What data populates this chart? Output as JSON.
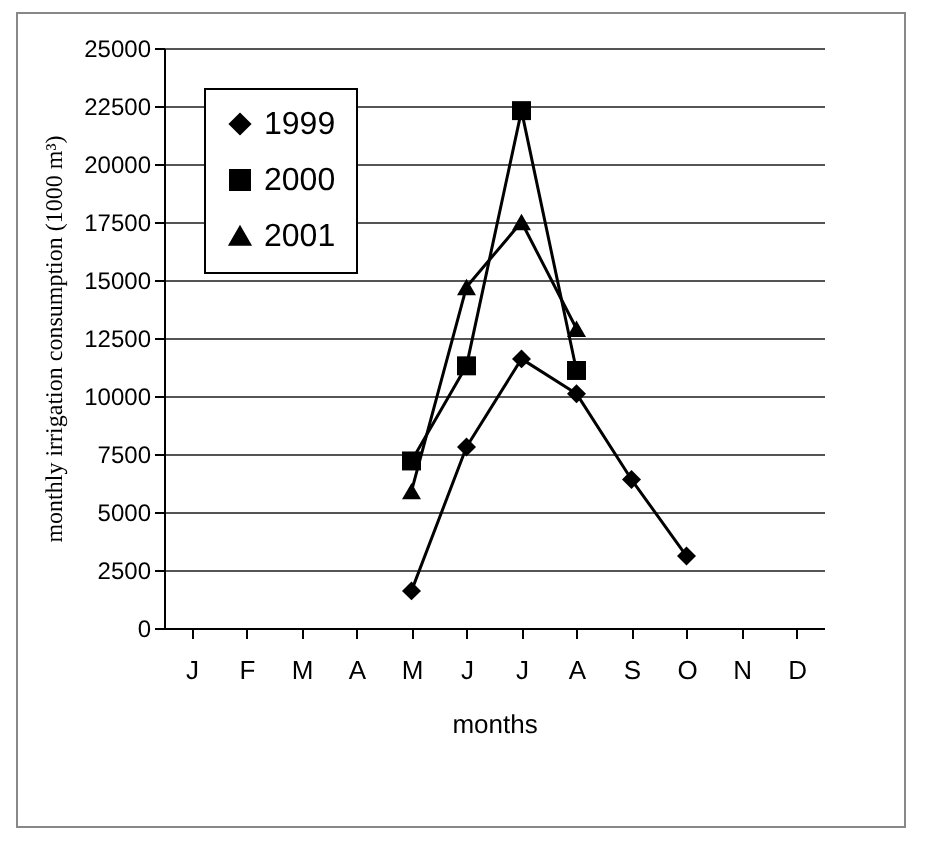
{
  "chart_data": {
    "type": "line",
    "xlabel": "months",
    "ylabel": "monthly irrigation consumption (1000 m³)",
    "categories": [
      "J",
      "F",
      "M",
      "A",
      "M",
      "J",
      "J",
      "A",
      "S",
      "O",
      "N",
      "D"
    ],
    "series": [
      {
        "name": "1999",
        "color": "#000000",
        "marker": "diamond",
        "values": [
          null,
          null,
          null,
          null,
          1600,
          7800,
          11600,
          10100,
          6400,
          3100,
          null,
          null
        ]
      },
      {
        "name": "2000",
        "color": "#000000",
        "marker": "square",
        "values": [
          null,
          null,
          null,
          null,
          7200,
          11300,
          22300,
          11100,
          null,
          null,
          null,
          null
        ]
      },
      {
        "name": "2001",
        "color": "#000000",
        "marker": "triangle",
        "values": [
          null,
          null,
          null,
          null,
          5900,
          14700,
          17500,
          12900,
          null,
          null,
          null,
          null
        ]
      }
    ],
    "ylim": [
      0,
      25000
    ],
    "yticks": [
      0,
      2500,
      5000,
      7500,
      10000,
      12500,
      15000,
      17500,
      20000,
      22500,
      25000
    ],
    "grid": "y",
    "legend": "top left",
    "line_style": "solid"
  }
}
